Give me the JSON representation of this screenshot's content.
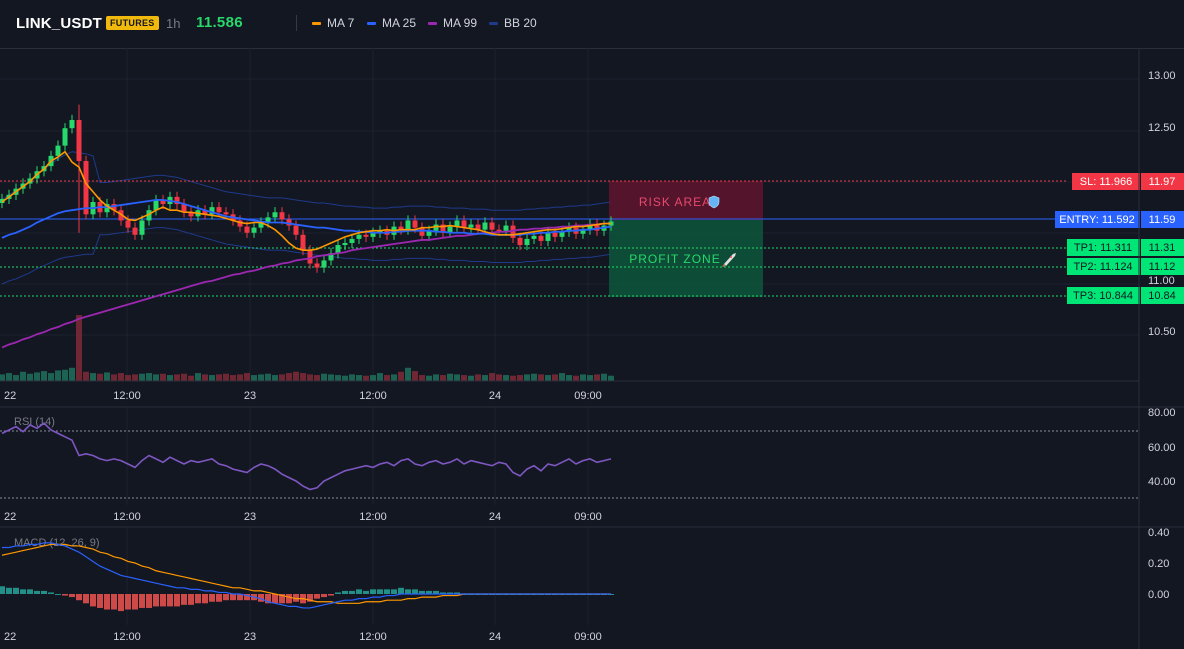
{
  "header": {
    "symbol": "LINK_USDT",
    "badge": "FUTURES",
    "timeframe": "1h",
    "price": "11.586",
    "indicators": [
      {
        "label": "MA 7",
        "color": "#ff9800"
      },
      {
        "label": "MA 25",
        "color": "#2962ff"
      },
      {
        "label": "MA 99",
        "color": "#9c27b0"
      },
      {
        "label": "BB 20",
        "color": "#1e3a8a"
      }
    ]
  },
  "colors": {
    "up": "#26d96a",
    "down": "#f23645",
    "background": "#131722",
    "grid": "#1e222d",
    "entry": "#2962ff",
    "sl": "#f23645",
    "tp": "#00c853"
  },
  "time_labels": [
    "22",
    "12:00",
    "23",
    "12:00",
    "24",
    "09:00"
  ],
  "overlays": {
    "risk_label": "RISK AREA",
    "risk_icon": "shield-icon",
    "profit_label": "PROFIT ZONE",
    "profit_icon": "rocket-icon"
  },
  "levels": {
    "sl": {
      "tag": "SL: 11.966",
      "value": "11.97"
    },
    "entry": {
      "tag": "ENTRY: 11.592",
      "value": "11.59"
    },
    "tp1": {
      "tag": "TP1: 11.311",
      "value": "11.31"
    },
    "tp2": {
      "tag": "TP2: 11.124",
      "value": "11.12"
    },
    "tp3": {
      "tag": "TP3: 10.844",
      "value": "10.84"
    }
  },
  "rsi": {
    "label": "RSI (14)",
    "ticks": [
      "80.00",
      "60.00",
      "40.00"
    ]
  },
  "macd": {
    "label": "MACD (12, 26, 9)",
    "ticks": [
      "0.40",
      "0.20",
      "0.00"
    ]
  },
  "chart_data": {
    "type": "candlestick",
    "price_axis_ticks": [
      "13.00",
      "12.50",
      "11.00",
      "10.50"
    ],
    "ylim": [
      10.3,
      13.1
    ],
    "levels": {
      "sl": 11.966,
      "entry": 11.592,
      "tp1": 11.311,
      "tp2": 11.124,
      "tp3": 10.844
    },
    "close": [
      11.83,
      11.87,
      11.93,
      11.98,
      12.03,
      12.1,
      12.15,
      12.25,
      12.35,
      12.52,
      12.6,
      12.2,
      11.68,
      11.8,
      11.7,
      11.78,
      11.72,
      11.62,
      11.55,
      11.48,
      11.62,
      11.72,
      11.82,
      11.78,
      11.85,
      11.78,
      11.7,
      11.66,
      11.72,
      11.68,
      11.75,
      11.7,
      11.68,
      11.62,
      11.56,
      11.5,
      11.55,
      11.6,
      11.65,
      11.7,
      11.63,
      11.57,
      11.48,
      11.33,
      11.2,
      11.16,
      11.23,
      11.3,
      11.38,
      11.4,
      11.44,
      11.48,
      11.46,
      11.5,
      11.52,
      11.48,
      11.56,
      11.53,
      11.62,
      11.55,
      11.47,
      11.52,
      11.58,
      11.5,
      11.56,
      11.62,
      11.55,
      11.58,
      11.53,
      11.6,
      11.53,
      11.52,
      11.57,
      11.45,
      11.38,
      11.44,
      11.47,
      11.42,
      11.5,
      11.46,
      11.51,
      11.55,
      11.49,
      11.53,
      11.58,
      11.52,
      11.57,
      11.61
    ],
    "volume": [
      10,
      12,
      9,
      14,
      11,
      13,
      15,
      12,
      16,
      17,
      20,
      100,
      14,
      12,
      11,
      13,
      10,
      12,
      9,
      10,
      11,
      12,
      10,
      11,
      9,
      10,
      11,
      8,
      12,
      10,
      9,
      10,
      11,
      9,
      10,
      12,
      9,
      10,
      11,
      9,
      10,
      12,
      14,
      12,
      10,
      9,
      11,
      10,
      9,
      8,
      10,
      9,
      8,
      9,
      12,
      9,
      10,
      14,
      20,
      15,
      9,
      8,
      10,
      9,
      11,
      10,
      9,
      8,
      10,
      9,
      12,
      10,
      9,
      8,
      9,
      10,
      11,
      10,
      9,
      10,
      12,
      9,
      8,
      10,
      9,
      10,
      11,
      8
    ],
    "ma7": [
      11.8,
      11.85,
      11.9,
      11.95,
      12.0,
      12.07,
      12.12,
      12.2,
      12.24,
      12.29,
      12.19,
      12.14,
      11.98,
      11.9,
      11.82,
      11.76,
      11.72,
      11.68,
      11.63,
      11.62,
      11.65,
      11.68,
      11.72,
      11.75,
      11.72,
      11.72,
      11.7,
      11.7,
      11.69,
      11.68,
      11.67,
      11.66,
      11.64,
      11.62,
      11.6,
      11.59,
      11.6,
      11.6,
      11.57,
      11.53,
      11.47,
      11.4,
      11.35,
      11.33,
      11.33,
      11.34,
      11.37,
      11.4,
      11.43,
      11.46,
      11.48,
      11.5,
      11.51,
      11.52,
      11.52,
      11.53,
      11.52,
      11.53,
      11.53,
      11.53,
      11.55,
      11.55,
      11.56,
      11.56,
      11.57,
      11.56,
      11.55,
      11.54,
      11.53,
      11.51,
      11.49,
      11.48,
      11.48,
      11.48,
      11.49,
      11.5,
      11.51,
      11.52,
      11.53,
      11.53,
      11.54,
      11.55,
      11.56,
      11.56,
      11.57,
      11.58,
      11.59,
      11.59
    ],
    "ma25": [
      11.45,
      11.48,
      11.5,
      11.53,
      11.56,
      11.6,
      11.63,
      11.66,
      11.69,
      11.71,
      11.72,
      11.73,
      11.74,
      11.74,
      11.75,
      11.75,
      11.76,
      11.77,
      11.78,
      11.79,
      11.8,
      11.81,
      11.82,
      11.82,
      11.81,
      11.8,
      11.78,
      11.76,
      11.74,
      11.72,
      11.7,
      11.68,
      11.66,
      11.65,
      11.64,
      11.63,
      11.62,
      11.61,
      11.6,
      11.6,
      11.6,
      11.59,
      11.58,
      11.57,
      11.56,
      11.55,
      11.55,
      11.54,
      11.53,
      11.52,
      11.52,
      11.51,
      11.51,
      11.5,
      11.5,
      11.5,
      11.51,
      11.51,
      11.52,
      11.52,
      11.52,
      11.52,
      11.51,
      11.51,
      11.5,
      11.5,
      11.5,
      11.49,
      11.49,
      11.49,
      11.48,
      11.48,
      11.48,
      11.48,
      11.48,
      11.49,
      11.49,
      11.5,
      11.5,
      11.51,
      11.51,
      11.52,
      11.52,
      11.53,
      11.53,
      11.54,
      11.55,
      11.56
    ],
    "ma99": [
      10.38,
      10.41,
      10.43,
      10.46,
      10.48,
      10.51,
      10.53,
      10.56,
      10.58,
      10.61,
      10.63,
      10.66,
      10.68,
      10.7,
      10.72,
      10.74,
      10.76,
      10.78,
      10.8,
      10.82,
      10.84,
      10.86,
      10.88,
      10.9,
      10.92,
      10.94,
      10.96,
      10.98,
      11.0,
      11.02,
      11.03,
      11.05,
      11.07,
      11.09,
      11.1,
      11.12,
      11.13,
      11.15,
      11.17,
      11.18,
      11.2,
      11.21,
      11.23,
      11.24,
      11.25,
      11.27,
      11.28,
      11.29,
      11.3,
      11.31,
      11.33,
      11.34,
      11.35,
      11.36,
      11.37,
      11.38,
      11.39,
      11.4,
      11.41,
      11.42,
      11.43,
      11.43,
      11.44,
      11.45,
      11.46,
      11.47,
      11.47,
      11.48,
      11.49,
      11.5,
      11.5,
      11.51,
      11.51,
      11.52,
      11.53,
      11.53,
      11.54,
      11.54,
      11.55,
      11.55,
      11.56,
      11.56,
      11.57,
      11.57,
      11.58,
      11.58,
      11.59,
      11.59
    ],
    "rsi": [
      68,
      70,
      72,
      69,
      73,
      71,
      74,
      70,
      68,
      66,
      64,
      55,
      56,
      55,
      53,
      52,
      53,
      52,
      50,
      48,
      52,
      55,
      53,
      51,
      54,
      52,
      50,
      52,
      51,
      52,
      53,
      50,
      49,
      47,
      46,
      45,
      48,
      50,
      49,
      47,
      44,
      42,
      40,
      37,
      35,
      36,
      40,
      42,
      44,
      46,
      47,
      48,
      49,
      48,
      50,
      51,
      49,
      52,
      53,
      50,
      49,
      51,
      52,
      50,
      51,
      53,
      50,
      52,
      51,
      50,
      49,
      51,
      50,
      45,
      43,
      47,
      49,
      46,
      50,
      49,
      51,
      53,
      50,
      52,
      53,
      51,
      52,
      53
    ],
    "macd": [
      0.3,
      0.3,
      0.31,
      0.31,
      0.32,
      0.32,
      0.33,
      0.33,
      0.32,
      0.31,
      0.29,
      0.27,
      0.24,
      0.21,
      0.18,
      0.16,
      0.14,
      0.12,
      0.11,
      0.1,
      0.09,
      0.08,
      0.07,
      0.06,
      0.05,
      0.04,
      0.04,
      0.03,
      0.03,
      0.02,
      0.02,
      0.01,
      0.01,
      0.0,
      0.0,
      -0.01,
      -0.02,
      -0.03,
      -0.05,
      -0.06,
      -0.07,
      -0.08,
      -0.08,
      -0.09,
      -0.09,
      -0.08,
      -0.07,
      -0.06,
      -0.05,
      -0.04,
      -0.04,
      -0.03,
      -0.03,
      -0.02,
      -0.02,
      -0.01,
      -0.01,
      0.0,
      0.0,
      0.0,
      0.0,
      0.0,
      0.0,
      0.0,
      0.0,
      0.0,
      0.0,
      0.0,
      0.0,
      0.0,
      0.0,
      0.0,
      0.0,
      0.0,
      0.0,
      0.0,
      0.0,
      0.0,
      0.0,
      0.0,
      0.0,
      0.0,
      0.0,
      0.0,
      0.0,
      0.0,
      0.0,
      0.0
    ],
    "signal": [
      0.25,
      0.26,
      0.27,
      0.28,
      0.29,
      0.3,
      0.31,
      0.32,
      0.32,
      0.32,
      0.31,
      0.31,
      0.3,
      0.29,
      0.27,
      0.26,
      0.24,
      0.23,
      0.21,
      0.2,
      0.18,
      0.17,
      0.15,
      0.14,
      0.13,
      0.12,
      0.11,
      0.1,
      0.09,
      0.08,
      0.07,
      0.06,
      0.05,
      0.04,
      0.04,
      0.03,
      0.02,
      0.02,
      0.01,
      0.0,
      -0.01,
      -0.02,
      -0.03,
      -0.03,
      -0.04,
      -0.05,
      -0.05,
      -0.05,
      -0.06,
      -0.06,
      -0.06,
      -0.06,
      -0.05,
      -0.05,
      -0.05,
      -0.04,
      -0.04,
      -0.04,
      -0.03,
      -0.03,
      -0.02,
      -0.02,
      -0.02,
      -0.01,
      -0.01,
      -0.01,
      0.0,
      0.0,
      0.0,
      0.0,
      0.0,
      0.0,
      0.0,
      0.0,
      0.0,
      0.0,
      0.0,
      0.0,
      0.0,
      0.0,
      0.0,
      0.0,
      0.0,
      0.0,
      0.0,
      0.0,
      0.0,
      0.0
    ]
  }
}
